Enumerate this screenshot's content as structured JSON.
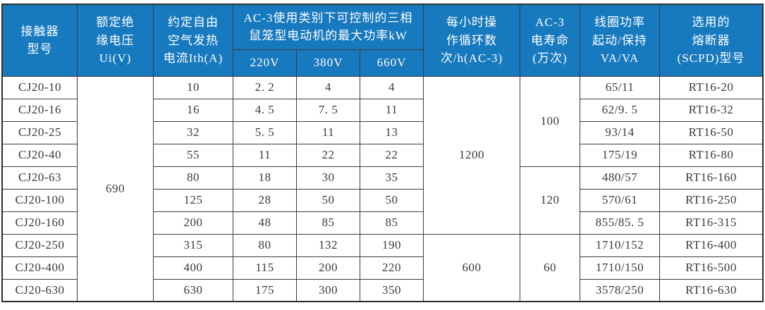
{
  "table": {
    "title_semantic": "CJ20 contactor technical specification table",
    "colors": {
      "header_bg": "#1779be",
      "header_text": "#ffffff",
      "border": "#3c3c3c",
      "body_text": "#3a3a3a"
    },
    "headers": {
      "model": "接触器\n型号",
      "insulation_voltage": "额定绝\n缘电压\nUi(V)",
      "thermal_current": "约定自由\n空气发热\n电流Ith(A)",
      "ac3_power_group": "AC-3使用类别下可控制的三相\n鼠笼型电动机的最大功率kW",
      "v220": "220V",
      "v380": "380V",
      "v660": "660V",
      "cycles_per_hour": "每小时操\n作循环数\n次/h(AC-3)",
      "ac3_life": "AC-3\n电寿命\n(万次)",
      "coil_power": "线圈功率\n起动/保持\nVA/VA",
      "fuse": "选用的\n熔断器\n(SCPD)型号"
    },
    "merged": {
      "ui_voltage_all_rows": "690",
      "cycles_rows_1_7": "1200",
      "cycles_rows_8_10": "600",
      "life_rows_1_4": "100",
      "life_rows_5_7": "120",
      "life_rows_8_10": "60"
    },
    "rows": [
      {
        "model": "CJ20-10",
        "ith": "10",
        "p220": "2. 2",
        "p380": "4",
        "p660": "4",
        "coil": "65/11",
        "fuse": "RT16-20"
      },
      {
        "model": "CJ20-16",
        "ith": "16",
        "p220": "4. 5",
        "p380": "7. 5",
        "p660": "11",
        "coil": "62/9. 5",
        "fuse": "RT16-32"
      },
      {
        "model": "CJ20-25",
        "ith": "32",
        "p220": "5. 5",
        "p380": "11",
        "p660": "13",
        "coil": "93/14",
        "fuse": "RT16-50"
      },
      {
        "model": "CJ20-40",
        "ith": "55",
        "p220": "11",
        "p380": "22",
        "p660": "22",
        "coil": "175/19",
        "fuse": "RT16-80"
      },
      {
        "model": "CJ20-63",
        "ith": "80",
        "p220": "18",
        "p380": "30",
        "p660": "35",
        "coil": "480/57",
        "fuse": "RT16-160"
      },
      {
        "model": "CJ20-100",
        "ith": "125",
        "p220": "28",
        "p380": "50",
        "p660": "50",
        "coil": "570/61",
        "fuse": "RT16-250"
      },
      {
        "model": "CJ20-160",
        "ith": "200",
        "p220": "48",
        "p380": "85",
        "p660": "85",
        "coil": "855/85. 5",
        "fuse": "RT16-315"
      },
      {
        "model": "CJ20-250",
        "ith": "315",
        "p220": "80",
        "p380": "132",
        "p660": "190",
        "coil": "1710/152",
        "fuse": "RT16-400"
      },
      {
        "model": "CJ20-400",
        "ith": "400",
        "p220": "115",
        "p380": "200",
        "p660": "220",
        "coil": "1710/150",
        "fuse": "RT16-500"
      },
      {
        "model": "CJ20-630",
        "ith": "630",
        "p220": "175",
        "p380": "300",
        "p660": "350",
        "coil": "3578/250",
        "fuse": "RT16-630"
      }
    ]
  }
}
